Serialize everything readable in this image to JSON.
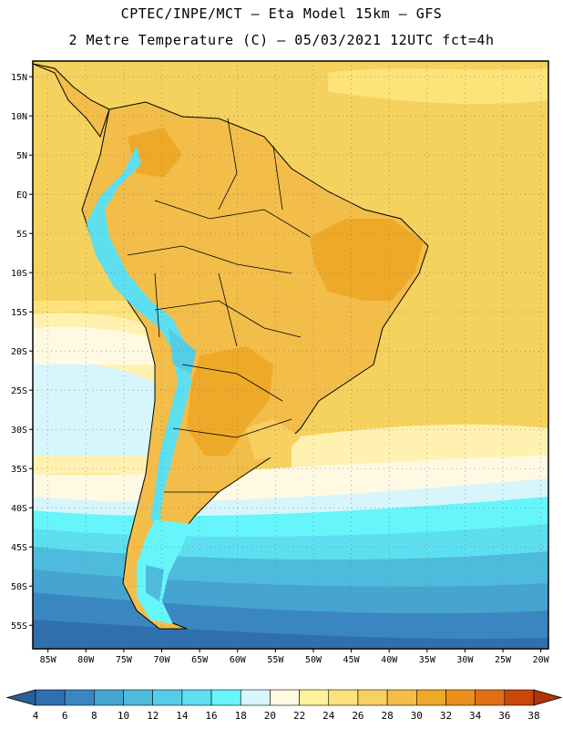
{
  "header": {
    "title_line1": "CPTEC/INPE/MCT –  Eta Model 15km – GFS",
    "title_line2": "2 Metre Temperature (C) – 05/03/2021 12UTC fct=4h"
  },
  "map": {
    "lat_labels": [
      "15N",
      "10N",
      "5N",
      "EQ",
      "5S",
      "10S",
      "15S",
      "20S",
      "25S",
      "30S",
      "35S",
      "40S",
      "45S",
      "50S",
      "55S"
    ],
    "lon_labels": [
      "85W",
      "80W",
      "75W",
      "70W",
      "65W",
      "60W",
      "55W",
      "50W",
      "45W",
      "40W",
      "35W",
      "30W",
      "25W",
      "20W"
    ],
    "extent": {
      "lon_min": -87,
      "lon_max": -19,
      "lat_min": -58,
      "lat_max": 17
    }
  },
  "colorbar": {
    "labels": [
      "4",
      "6",
      "8",
      "10",
      "12",
      "14",
      "16",
      "18",
      "20",
      "22",
      "24",
      "26",
      "28",
      "30",
      "32",
      "34",
      "36",
      "38"
    ],
    "colors": [
      "#2f6fae",
      "#3a86c1",
      "#45a4d0",
      "#4fbbdc",
      "#55cde6",
      "#5ddff0",
      "#66f5fb",
      "#d6f6fb",
      "#fff9e3",
      "#fff29a",
      "#fde37a",
      "#f7d061",
      "#f3bd4a",
      "#efa928",
      "#ea8f1c",
      "#e07012",
      "#c9470c"
    ],
    "low_arrow_color": "#2a5f98",
    "high_arrow_color": "#b13408"
  },
  "field_colors": {
    "ocean_tropical": "#f4d25d",
    "ocean_subtropical": "#fde37a",
    "ocean_pale": "#fff2b0",
    "land_warm": "#f3bd4a",
    "land_hot": "#efa928",
    "andes_cold": "#5ddff0",
    "south_cold": "#2f6fae"
  }
}
